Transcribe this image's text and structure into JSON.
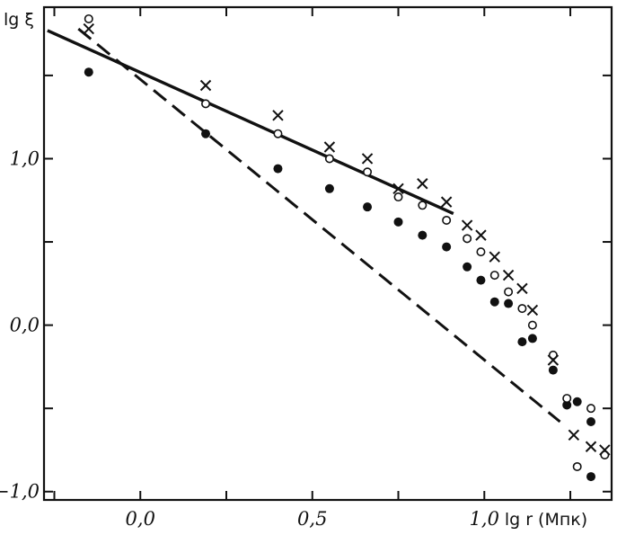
{
  "chart_data": {
    "type": "scatter",
    "title": "",
    "xlabel": "lg r (Мпк)",
    "ylabel": "lg ξ",
    "xlim": [
      -0.28,
      1.37
    ],
    "ylim": [
      -1.05,
      1.91
    ],
    "x_ticks": [
      -0.25,
      0.0,
      0.25,
      0.5,
      0.75,
      1.0,
      1.25
    ],
    "x_tick_labels": [
      "",
      "0,0",
      "",
      "0,5",
      "",
      "1,0",
      ""
    ],
    "y_ticks": [
      -1.0,
      -0.5,
      0.0,
      0.5,
      1.0,
      1.5
    ],
    "y_tick_labels": [
      "−1,0",
      "",
      "0,0",
      "",
      "1,0",
      ""
    ],
    "grid": false,
    "legend": "none",
    "series": [
      {
        "marker": "filled-circle",
        "x": [
          -0.15,
          0.19,
          0.4,
          0.55,
          0.66,
          0.75,
          0.82,
          0.89,
          0.95,
          0.99,
          1.03,
          1.07,
          1.11,
          1.14,
          1.2,
          1.24,
          1.27,
          1.31,
          1.31
        ],
        "y": [
          1.52,
          1.15,
          0.94,
          0.82,
          0.71,
          0.62,
          0.54,
          0.47,
          0.35,
          0.27,
          0.14,
          0.13,
          -0.1,
          -0.08,
          -0.27,
          -0.48,
          -0.46,
          -0.58,
          -0.91
        ]
      },
      {
        "marker": "open-circle",
        "x": [
          -0.15,
          0.19,
          0.4,
          0.55,
          0.66,
          0.75,
          0.82,
          0.89,
          0.95,
          0.99,
          1.03,
          1.07,
          1.11,
          1.14,
          1.2,
          1.24,
          1.27,
          1.31,
          1.35
        ],
        "y": [
          1.84,
          1.33,
          1.15,
          1.0,
          0.92,
          0.77,
          0.72,
          0.63,
          0.52,
          0.44,
          0.3,
          0.2,
          0.1,
          0.0,
          -0.18,
          -0.44,
          -0.85,
          -0.5,
          -0.78
        ]
      },
      {
        "marker": "cross",
        "x": [
          -0.15,
          0.19,
          0.4,
          0.55,
          0.66,
          0.75,
          0.82,
          0.89,
          0.95,
          0.99,
          1.03,
          1.07,
          1.11,
          1.14,
          1.2,
          1.26,
          1.31,
          1.35
        ],
        "y": [
          1.78,
          1.44,
          1.26,
          1.07,
          1.0,
          0.82,
          0.85,
          0.74,
          0.6,
          0.54,
          0.41,
          0.3,
          0.22,
          0.09,
          -0.21,
          -0.66,
          -0.73,
          -0.75
        ]
      },
      {
        "style": "solid-line",
        "x": [
          -0.27,
          0.91
        ],
        "y": [
          1.77,
          0.67
        ]
      },
      {
        "style": "dashed-line",
        "x": [
          -0.18,
          1.22
        ],
        "y": [
          1.78,
          -0.58
        ]
      }
    ]
  }
}
